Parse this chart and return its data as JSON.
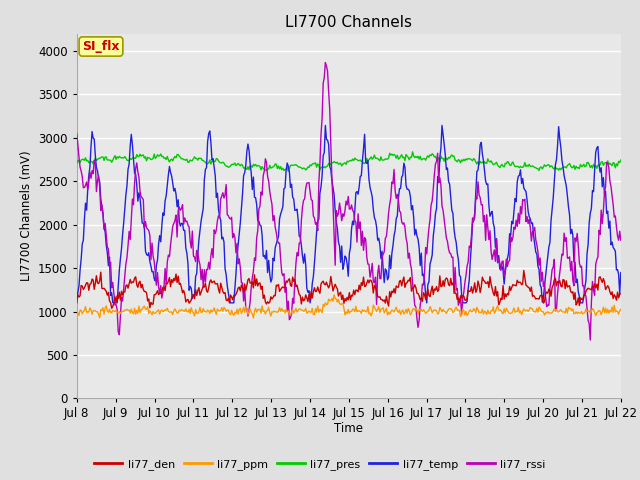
{
  "title": "LI7700 Channels",
  "ylabel": "LI7700 Channels (mV)",
  "xlabel": "Time",
  "ylim": [
    0,
    4200
  ],
  "yticks": [
    0,
    500,
    1000,
    1500,
    2000,
    2500,
    3000,
    3500,
    4000
  ],
  "x_start": 8,
  "x_end": 22,
  "xtick_labels": [
    "Jul 8",
    "Jul 9",
    "Jul 10",
    "Jul 11",
    "Jul 12",
    "Jul 13",
    "Jul 14",
    "Jul 15",
    "Jul 16",
    "Jul 17",
    "Jul 18",
    "Jul 19",
    "Jul 20",
    "Jul 21",
    "Jul 22"
  ],
  "xtick_positions": [
    8,
    9,
    10,
    11,
    12,
    13,
    14,
    15,
    16,
    17,
    18,
    19,
    20,
    21,
    22
  ],
  "background_color": "#e0e0e0",
  "plot_bg_color": "#e8e8e8",
  "grid_color": "#ffffff",
  "title_fontsize": 11,
  "legend_entries": [
    "li77_den",
    "li77_ppm",
    "li77_pres",
    "li77_temp",
    "li77_rssi"
  ],
  "line_colors": {
    "li77_den": "#cc0000",
    "li77_ppm": "#ff9900",
    "li77_pres": "#00cc00",
    "li77_temp": "#2222dd",
    "li77_rssi": "#bb00bb"
  },
  "annotation_text": "SI_flx",
  "annotation_color": "#cc0000",
  "annotation_bg": "#ffff99",
  "annotation_border": "#999900"
}
